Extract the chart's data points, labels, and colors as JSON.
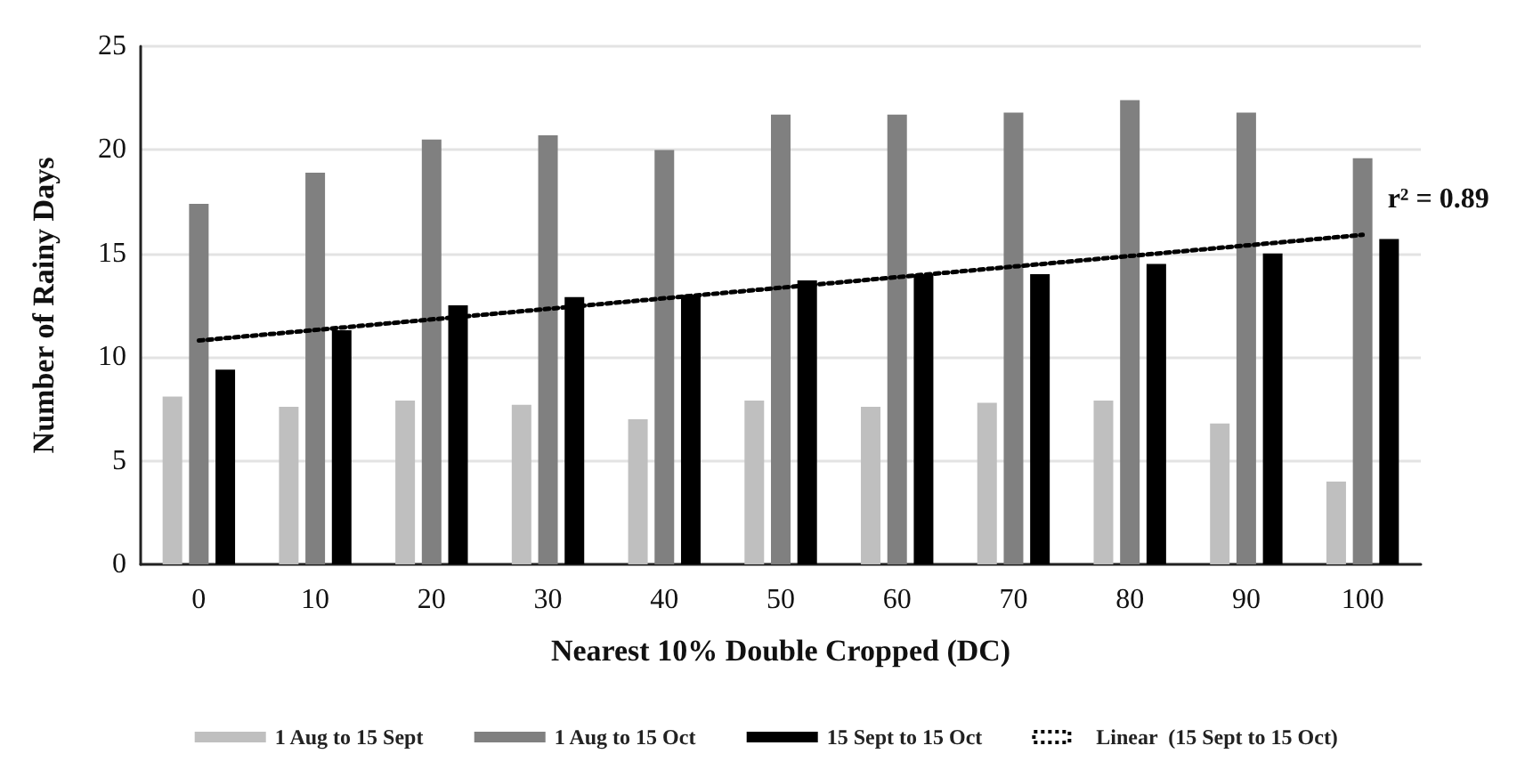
{
  "chart_data": {
    "type": "bar",
    "xlabel": "Nearest 10% Double Cropped (DC)",
    "ylabel": "Number of Rainy Days",
    "categories": [
      "0",
      "10",
      "20",
      "30",
      "40",
      "50",
      "60",
      "70",
      "80",
      "90",
      "100"
    ],
    "series": [
      {
        "name": "1 Aug to 15 Sept",
        "color": "#bfbfbf",
        "values": [
          8.1,
          7.6,
          7.9,
          7.7,
          7.0,
          7.9,
          7.6,
          7.8,
          7.9,
          6.8,
          4.0
        ]
      },
      {
        "name": "1 Aug to 15 Oct",
        "color": "#808080",
        "values": [
          17.4,
          18.9,
          20.5,
          20.7,
          20.0,
          21.7,
          21.7,
          21.8,
          22.4,
          21.8,
          19.6
        ]
      },
      {
        "name": "15 Sept to 15 Oct",
        "color": "#000000",
        "values": [
          9.4,
          11.3,
          12.5,
          12.9,
          13.0,
          13.7,
          14.0,
          14.0,
          14.5,
          15.0,
          15.7
        ]
      },
      {
        "name": "Linear  (15 Sept to 15 Oct)",
        "type": "line",
        "color": "#000000",
        "line_style": "dotted",
        "x": [
          "0",
          "100"
        ],
        "values": [
          10.8,
          15.9
        ]
      }
    ],
    "annotations": [
      {
        "text": "r² = 0.89",
        "x": "100",
        "y": 15.9
      }
    ],
    "ylim": [
      0,
      25
    ],
    "yticks": [
      0,
      5,
      10,
      15,
      20,
      25
    ],
    "grid": "y",
    "legend": "bottom",
    "marker": "none"
  }
}
